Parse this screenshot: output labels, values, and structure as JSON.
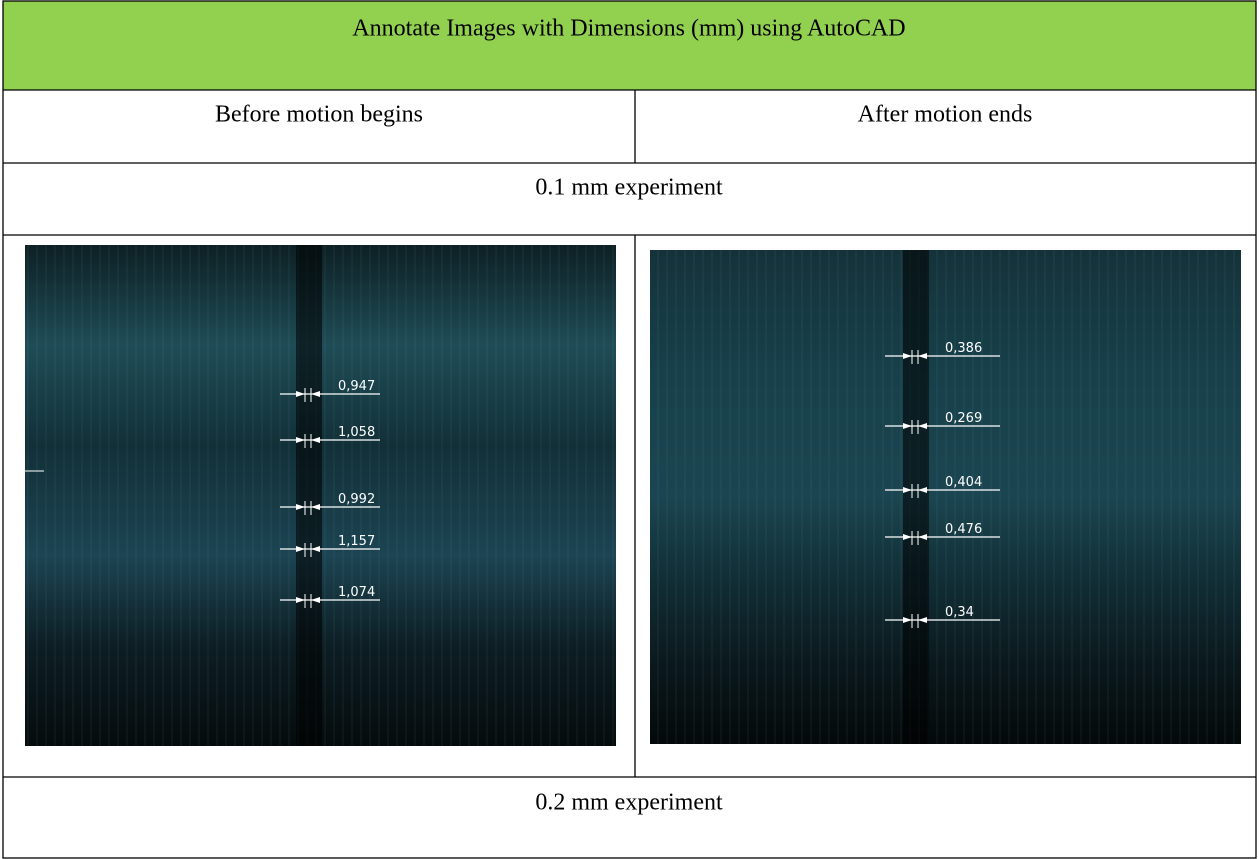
{
  "table": {
    "title": "Annotate Images with Dimensions (mm) using AutoCAD",
    "columns": [
      "Before motion begins",
      "After motion ends"
    ],
    "rows": [
      {
        "label": "0.1 mm experiment",
        "before": {
          "dimensions": [
            "0,947",
            "1,058",
            "0,992",
            "1,157",
            "1,074"
          ]
        },
        "after": {
          "dimensions": [
            "0,386",
            "0,269",
            "0,404",
            "0,476",
            "0,34"
          ]
        }
      },
      {
        "label": "0.2 mm experiment"
      }
    ]
  }
}
